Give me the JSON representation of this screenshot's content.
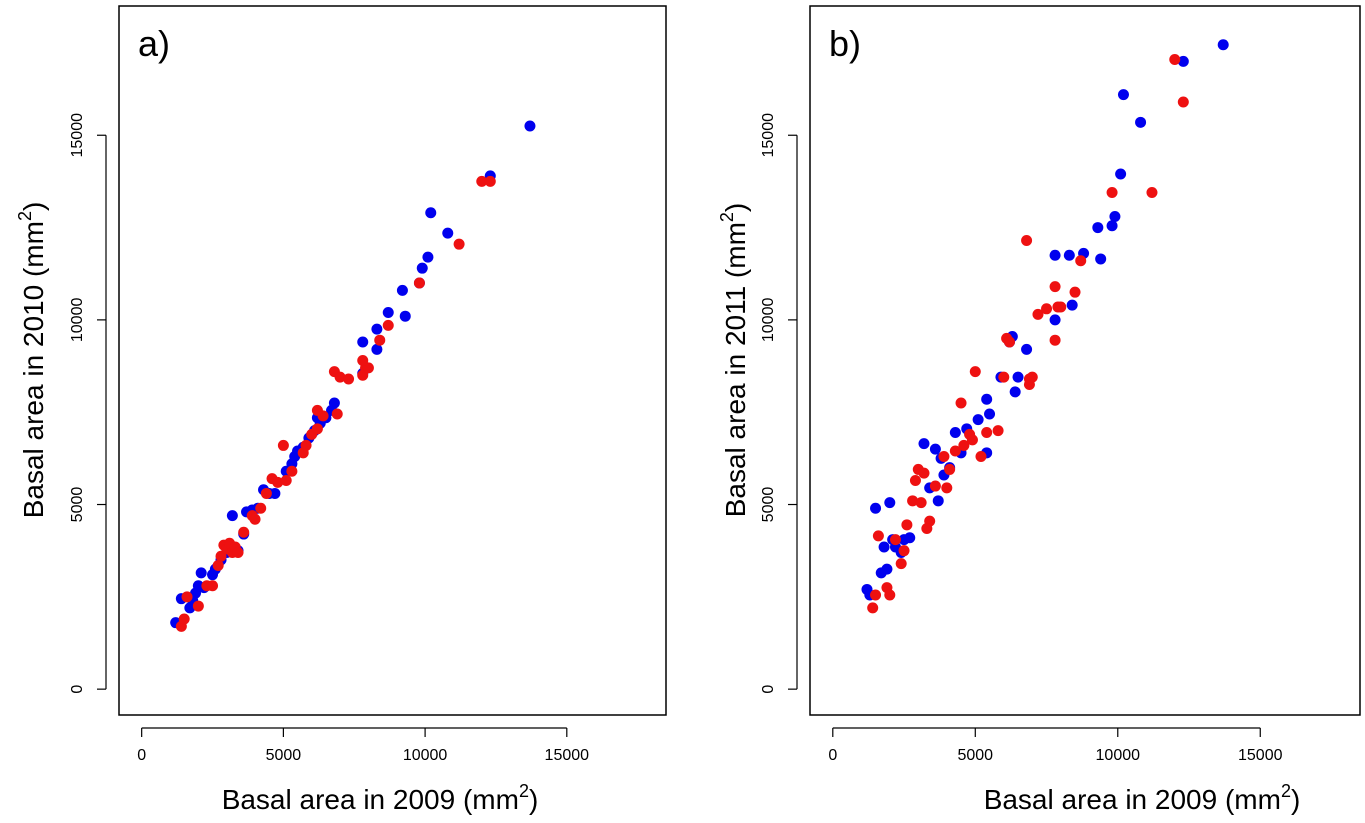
{
  "colors": {
    "series_a": "#0000ee",
    "series_b": "#ee1111",
    "axis": "#000000"
  },
  "chart_data": [
    {
      "type": "scatter",
      "panel_label": "a)",
      "xlabel": "Basal area in 2009 (mm",
      "xlabel_sup": "2",
      "xlabel_end": ")",
      "ylabel": "Basal area in 2010 (mm",
      "ylabel_sup": "2",
      "ylabel_end": ")",
      "xlim": [
        -800,
        18500
      ],
      "ylim": [
        -700,
        18500
      ],
      "x_ticks": [
        0,
        5000,
        10000,
        15000
      ],
      "x_tick_labels": [
        "0",
        "5000",
        "10000",
        "15000"
      ],
      "y_ticks": [
        0,
        5000,
        10000,
        15000
      ],
      "y_tick_labels": [
        "0",
        "5000",
        "10000",
        "15000"
      ],
      "grid": false,
      "legend": "none",
      "series": [
        {
          "color": "#0000ee",
          "points": [
            [
              1200,
              1800
            ],
            [
              1400,
              2450
            ],
            [
              1700,
              2200
            ],
            [
              1800,
              2400
            ],
            [
              1900,
              2600
            ],
            [
              2000,
              2800
            ],
            [
              2100,
              3150
            ],
            [
              2200,
              2750
            ],
            [
              2500,
              3100
            ],
            [
              2600,
              3250
            ],
            [
              2800,
              3500
            ],
            [
              3000,
              3700
            ],
            [
              3200,
              4700
            ],
            [
              3400,
              3750
            ],
            [
              3600,
              4200
            ],
            [
              3700,
              4800
            ],
            [
              3900,
              4850
            ],
            [
              4100,
              4900
            ],
            [
              4300,
              5400
            ],
            [
              4500,
              5300
            ],
            [
              4700,
              5300
            ],
            [
              5100,
              5900
            ],
            [
              5300,
              6100
            ],
            [
              5400,
              6300
            ],
            [
              5500,
              6450
            ],
            [
              5700,
              6550
            ],
            [
              5900,
              6800
            ],
            [
              6100,
              7000
            ],
            [
              6200,
              7350
            ],
            [
              6300,
              7200
            ],
            [
              6500,
              7350
            ],
            [
              6700,
              7550
            ],
            [
              6800,
              7750
            ],
            [
              7800,
              9400
            ],
            [
              7800,
              8550
            ],
            [
              8300,
              9750
            ],
            [
              8300,
              9200
            ],
            [
              8700,
              10200
            ],
            [
              9200,
              10800
            ],
            [
              9300,
              10100
            ],
            [
              9800,
              11000
            ],
            [
              9900,
              11400
            ],
            [
              10100,
              11700
            ],
            [
              10200,
              12900
            ],
            [
              10800,
              12350
            ],
            [
              12300,
              13900
            ],
            [
              13700,
              15250
            ]
          ]
        },
        {
          "color": "#ee1111",
          "points": [
            [
              1400,
              1700
            ],
            [
              1500,
              1900
            ],
            [
              1600,
              2500
            ],
            [
              2000,
              2250
            ],
            [
              2300,
              2800
            ],
            [
              2500,
              2800
            ],
            [
              2700,
              3350
            ],
            [
              2800,
              3600
            ],
            [
              2900,
              3900
            ],
            [
              3000,
              3800
            ],
            [
              3100,
              3950
            ],
            [
              3200,
              3700
            ],
            [
              3300,
              3850
            ],
            [
              3400,
              3700
            ],
            [
              3600,
              4250
            ],
            [
              3900,
              4700
            ],
            [
              4000,
              4600
            ],
            [
              4200,
              4900
            ],
            [
              4400,
              5300
            ],
            [
              4600,
              5700
            ],
            [
              4800,
              5600
            ],
            [
              5000,
              6600
            ],
            [
              5100,
              5650
            ],
            [
              5300,
              5900
            ],
            [
              5700,
              6400
            ],
            [
              5800,
              6600
            ],
            [
              6000,
              6900
            ],
            [
              6200,
              7050
            ],
            [
              6400,
              7400
            ],
            [
              6800,
              8600
            ],
            [
              7000,
              8450
            ],
            [
              7300,
              8400
            ],
            [
              7800,
              8500
            ],
            [
              7900,
              8700
            ],
            [
              8000,
              8700
            ],
            [
              8400,
              9450
            ],
            [
              8700,
              9850
            ],
            [
              9800,
              11000
            ],
            [
              11200,
              12050
            ],
            [
              12000,
              13750
            ],
            [
              12300,
              13750
            ],
            [
              6900,
              7450
            ],
            [
              6200,
              7550
            ],
            [
              7800,
              8900
            ]
          ]
        }
      ]
    },
    {
      "type": "scatter",
      "panel_label": "b)",
      "xlabel": "Basal area in 2009 (mm",
      "xlabel_sup": "2",
      "xlabel_end": ")",
      "ylabel": "Basal area in 2011 (mm",
      "ylabel_sup": "2",
      "ylabel_end": ")",
      "xlim": [
        -800,
        18500
      ],
      "ylim": [
        -700,
        18500
      ],
      "x_ticks": [
        0,
        5000,
        10000,
        15000
      ],
      "x_tick_labels": [
        "0",
        "5000",
        "10000",
        "15000"
      ],
      "y_ticks": [
        0,
        5000,
        10000,
        15000
      ],
      "y_tick_labels": [
        "0",
        "5000",
        "10000",
        "15000"
      ],
      "grid": false,
      "legend": "none",
      "series": [
        {
          "color": "#0000ee",
          "points": [
            [
              1200,
              2700
            ],
            [
              1300,
              2550
            ],
            [
              1500,
              4900
            ],
            [
              1700,
              3150
            ],
            [
              1800,
              3850
            ],
            [
              1900,
              3250
            ],
            [
              2000,
              5050
            ],
            [
              2100,
              4050
            ],
            [
              2200,
              3850
            ],
            [
              2400,
              3700
            ],
            [
              2500,
              4050
            ],
            [
              2700,
              4100
            ],
            [
              3200,
              6650
            ],
            [
              3400,
              5450
            ],
            [
              3600,
              6500
            ],
            [
              3700,
              5100
            ],
            [
              3800,
              6250
            ],
            [
              3900,
              5800
            ],
            [
              4100,
              6000
            ],
            [
              4300,
              6950
            ],
            [
              4500,
              6400
            ],
            [
              4700,
              7050
            ],
            [
              5100,
              7300
            ],
            [
              5400,
              7850
            ],
            [
              5500,
              7450
            ],
            [
              5400,
              6400
            ],
            [
              5900,
              8450
            ],
            [
              6200,
              9400
            ],
            [
              6300,
              9550
            ],
            [
              6400,
              8050
            ],
            [
              6500,
              8450
            ],
            [
              6800,
              9200
            ],
            [
              7800,
              10000
            ],
            [
              7800,
              11750
            ],
            [
              8300,
              11750
            ],
            [
              8400,
              10400
            ],
            [
              8800,
              11800
            ],
            [
              9300,
              12500
            ],
            [
              9400,
              11650
            ],
            [
              9800,
              12550
            ],
            [
              9900,
              12800
            ],
            [
              10100,
              13950
            ],
            [
              10200,
              16100
            ],
            [
              10800,
              15350
            ],
            [
              12300,
              17000
            ],
            [
              13700,
              17450
            ]
          ]
        },
        {
          "color": "#ee1111",
          "points": [
            [
              1400,
              2200
            ],
            [
              1500,
              2550
            ],
            [
              1600,
              4150
            ],
            [
              1900,
              2750
            ],
            [
              2000,
              2550
            ],
            [
              2200,
              4050
            ],
            [
              2400,
              3400
            ],
            [
              2500,
              3750
            ],
            [
              2600,
              4450
            ],
            [
              2800,
              5100
            ],
            [
              2900,
              5650
            ],
            [
              3000,
              5950
            ],
            [
              3100,
              5050
            ],
            [
              3200,
              5850
            ],
            [
              3400,
              4550
            ],
            [
              3600,
              5500
            ],
            [
              3900,
              6300
            ],
            [
              4000,
              5450
            ],
            [
              4100,
              5950
            ],
            [
              4300,
              6450
            ],
            [
              4500,
              7750
            ],
            [
              4600,
              6600
            ],
            [
              4800,
              6900
            ],
            [
              4900,
              6750
            ],
            [
              5000,
              8600
            ],
            [
              5200,
              6300
            ],
            [
              5400,
              6950
            ],
            [
              5800,
              7000
            ],
            [
              6000,
              8450
            ],
            [
              6100,
              9500
            ],
            [
              6200,
              9400
            ],
            [
              6800,
              12150
            ],
            [
              6900,
              8250
            ],
            [
              7000,
              8450
            ],
            [
              7200,
              10150
            ],
            [
              7500,
              10300
            ],
            [
              7800,
              10900
            ],
            [
              7800,
              9450
            ],
            [
              7900,
              10350
            ],
            [
              8000,
              10350
            ],
            [
              8500,
              10750
            ],
            [
              8700,
              11600
            ],
            [
              9800,
              13450
            ],
            [
              11200,
              13450
            ],
            [
              12000,
              17050
            ],
            [
              12300,
              15900
            ],
            [
              6900,
              8400
            ],
            [
              3300,
              4350
            ]
          ]
        }
      ]
    }
  ]
}
